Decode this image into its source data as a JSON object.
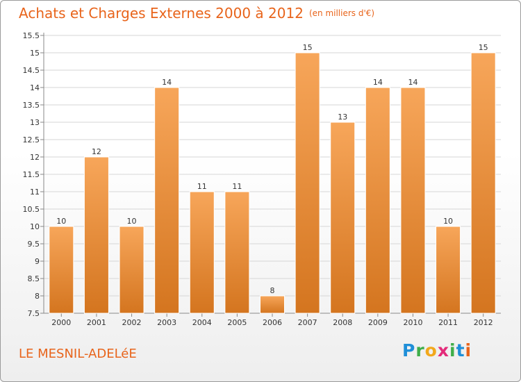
{
  "header": {
    "title": "Achats et Charges Externes 2000 à 2012",
    "unit": "(en milliers d'€)"
  },
  "footer": {
    "place": "LE MESNIL-ADELéE",
    "logo": "Proxiti"
  },
  "colors": {
    "accent": "#e8641b",
    "bar_top": "#f7a65a",
    "bar_bottom": "#d4751f",
    "grid": "#d6d6d6"
  },
  "chart_data": {
    "type": "bar",
    "title": "Achats et Charges Externes 2000 à 2012",
    "subtitle": "(en milliers d'€)",
    "xlabel": "",
    "ylabel": "",
    "categories": [
      "2000",
      "2001",
      "2002",
      "2003",
      "2004",
      "2005",
      "2006",
      "2007",
      "2008",
      "2009",
      "2010",
      "2011",
      "2012"
    ],
    "values": [
      10,
      12,
      10,
      14,
      11,
      11,
      8,
      15,
      13,
      14,
      14,
      10,
      15
    ],
    "data_labels": [
      "10",
      "12",
      "10",
      "14",
      "11",
      "11",
      "8",
      "15",
      "13",
      "14",
      "14",
      "10",
      "15"
    ],
    "ylim": [
      7.5,
      15.5
    ],
    "yticks": [
      "7.5",
      "8",
      "8.5",
      "9",
      "9.5",
      "10",
      "10.5",
      "11",
      "11.5",
      "12",
      "12.5",
      "13",
      "13.5",
      "14",
      "14.5",
      "15",
      "15.5"
    ],
    "grid": true,
    "legend": "none"
  }
}
